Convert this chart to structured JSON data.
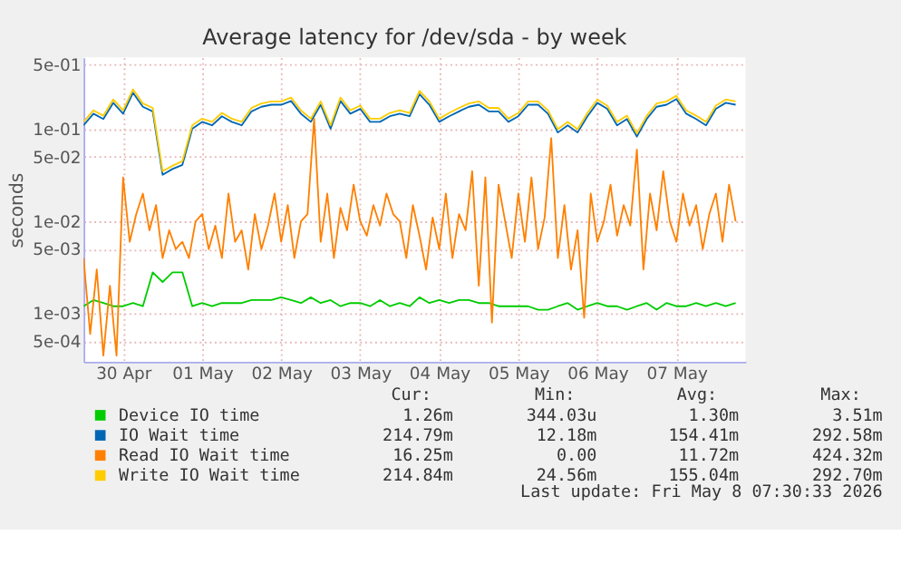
{
  "chart_data": {
    "type": "line",
    "title": "Average latency for /dev/sda - by week",
    "ylabel": "seconds",
    "log": "y",
    "grid": true,
    "legend": "bottom",
    "marker": "none",
    "line_style": "solid",
    "xlim": [
      "2026-04-30T00:00",
      "2026-05-08T09:00"
    ],
    "xticks": [
      {
        "value": "2026-04-30T12:00",
        "label": "30 Apr"
      },
      {
        "value": "2026-05-01T12:00",
        "label": "01 May"
      },
      {
        "value": "2026-05-02T12:00",
        "label": "02 May"
      },
      {
        "value": "2026-05-03T12:00",
        "label": "03 May"
      },
      {
        "value": "2026-05-04T12:00",
        "label": "04 May"
      },
      {
        "value": "2026-05-05T12:00",
        "label": "05 May"
      },
      {
        "value": "2026-05-06T12:00",
        "label": "06 May"
      },
      {
        "value": "2026-05-07T12:00",
        "label": "07 May"
      }
    ],
    "ylim": [
      0.0003,
      0.6
    ],
    "yticks": [
      {
        "value": 0.0005,
        "label": "5e-04"
      },
      {
        "value": 0.001,
        "label": "1e-03"
      },
      {
        "value": 0.005,
        "label": "5e-03"
      },
      {
        "value": 0.01,
        "label": "1e-02"
      },
      {
        "value": 0.05,
        "label": "5e-02"
      },
      {
        "value": 0.1,
        "label": "1e-01"
      },
      {
        "value": 0.5,
        "label": "5e-01"
      }
    ],
    "x": [
      "2026-04-30T00:00",
      "2026-04-30T03:00",
      "2026-04-30T06:00",
      "2026-04-30T09:00",
      "2026-04-30T12:00",
      "2026-04-30T15:00",
      "2026-04-30T18:00",
      "2026-04-30T21:00",
      "2026-05-01T00:00",
      "2026-05-01T03:00",
      "2026-05-01T06:00",
      "2026-05-01T09:00",
      "2026-05-01T12:00",
      "2026-05-01T15:00",
      "2026-05-01T18:00",
      "2026-05-01T21:00",
      "2026-05-02T00:00",
      "2026-05-02T03:00",
      "2026-05-02T06:00",
      "2026-05-02T09:00",
      "2026-05-02T12:00",
      "2026-05-02T15:00",
      "2026-05-02T18:00",
      "2026-05-02T21:00",
      "2026-05-03T00:00",
      "2026-05-03T03:00",
      "2026-05-03T06:00",
      "2026-05-03T09:00",
      "2026-05-03T12:00",
      "2026-05-03T15:00",
      "2026-05-03T18:00",
      "2026-05-03T21:00",
      "2026-05-04T00:00",
      "2026-05-04T03:00",
      "2026-05-04T06:00",
      "2026-05-04T09:00",
      "2026-05-04T12:00",
      "2026-05-04T15:00",
      "2026-05-04T18:00",
      "2026-05-04T21:00",
      "2026-05-05T00:00",
      "2026-05-05T03:00",
      "2026-05-05T06:00",
      "2026-05-05T09:00",
      "2026-05-05T12:00",
      "2026-05-05T15:00",
      "2026-05-05T18:00",
      "2026-05-05T21:00",
      "2026-05-06T00:00",
      "2026-05-06T03:00",
      "2026-05-06T06:00",
      "2026-05-06T09:00",
      "2026-05-06T12:00",
      "2026-05-06T15:00",
      "2026-05-06T18:00",
      "2026-05-06T21:00",
      "2026-05-07T00:00",
      "2026-05-07T03:00",
      "2026-05-07T06:00",
      "2026-05-07T09:00",
      "2026-05-07T12:00",
      "2026-05-07T15:00",
      "2026-05-07T18:00",
      "2026-05-07T21:00",
      "2026-05-08T00:00",
      "2026-05-08T03:00",
      "2026-05-08T06:00"
    ],
    "series": [
      {
        "name": "Device IO time",
        "color": "#00cc00",
        "values": [
          0.0012,
          0.0014,
          0.0013,
          0.0012,
          0.0012,
          0.0013,
          0.0012,
          0.0028,
          0.0022,
          0.0028,
          0.0028,
          0.0012,
          0.0013,
          0.0012,
          0.0013,
          0.0013,
          0.0013,
          0.0014,
          0.0014,
          0.0014,
          0.0015,
          0.0014,
          0.0013,
          0.0015,
          0.0013,
          0.0014,
          0.0012,
          0.0013,
          0.0013,
          0.0012,
          0.0014,
          0.0012,
          0.0013,
          0.0012,
          0.0015,
          0.0013,
          0.0014,
          0.0013,
          0.0014,
          0.0014,
          0.0013,
          0.0013,
          0.0012,
          0.0012,
          0.0012,
          0.0012,
          0.0011,
          0.0011,
          0.0012,
          0.0013,
          0.0011,
          0.0012,
          0.0013,
          0.0012,
          0.0012,
          0.0011,
          0.0012,
          0.0013,
          0.0011,
          0.0013,
          0.0012,
          0.0012,
          0.0013,
          0.0012,
          0.0013,
          0.0012,
          0.0013
        ]
      },
      {
        "name": "IO Wait time",
        "color": "#0066b3",
        "values": [
          0.11,
          0.147,
          0.129,
          0.193,
          0.147,
          0.248,
          0.175,
          0.156,
          0.032,
          0.037,
          0.041,
          0.101,
          0.12,
          0.11,
          0.138,
          0.12,
          0.11,
          0.156,
          0.175,
          0.184,
          0.184,
          0.202,
          0.147,
          0.12,
          0.184,
          0.101,
          0.202,
          0.147,
          0.166,
          0.12,
          0.12,
          0.138,
          0.147,
          0.138,
          0.239,
          0.184,
          0.12,
          0.138,
          0.156,
          0.175,
          0.184,
          0.156,
          0.156,
          0.12,
          0.138,
          0.184,
          0.184,
          0.147,
          0.092,
          0.11,
          0.092,
          0.138,
          0.193,
          0.166,
          0.11,
          0.129,
          0.083,
          0.129,
          0.175,
          0.184,
          0.212,
          0.147,
          0.129,
          0.11,
          0.166,
          0.193,
          0.184
        ]
      },
      {
        "name": "Read IO Wait time",
        "color": "#ff8000",
        "x": [
          "2026-04-30T00:00",
          "2026-04-30T02:00",
          "2026-04-30T04:00",
          "2026-04-30T06:00",
          "2026-04-30T08:00",
          "2026-04-30T10:00",
          "2026-04-30T12:00",
          "2026-04-30T14:00",
          "2026-04-30T16:00",
          "2026-04-30T18:00",
          "2026-04-30T20:00",
          "2026-04-30T22:00",
          "2026-05-01T00:00",
          "2026-05-01T02:00",
          "2026-05-01T04:00",
          "2026-05-01T06:00",
          "2026-05-01T08:00",
          "2026-05-01T10:00",
          "2026-05-01T12:00",
          "2026-05-01T14:00",
          "2026-05-01T16:00",
          "2026-05-01T18:00",
          "2026-05-01T20:00",
          "2026-05-01T22:00",
          "2026-05-02T00:00",
          "2026-05-02T02:00",
          "2026-05-02T04:00",
          "2026-05-02T06:00",
          "2026-05-02T08:00",
          "2026-05-02T10:00",
          "2026-05-02T12:00",
          "2026-05-02T14:00",
          "2026-05-02T16:00",
          "2026-05-02T18:00",
          "2026-05-02T20:00",
          "2026-05-02T22:00",
          "2026-05-03T00:00",
          "2026-05-03T02:00",
          "2026-05-03T04:00",
          "2026-05-03T06:00",
          "2026-05-03T08:00",
          "2026-05-03T10:00",
          "2026-05-03T12:00",
          "2026-05-03T14:00",
          "2026-05-03T16:00",
          "2026-05-03T18:00",
          "2026-05-03T20:00",
          "2026-05-03T22:00",
          "2026-05-04T00:00",
          "2026-05-04T02:00",
          "2026-05-04T04:00",
          "2026-05-04T06:00",
          "2026-05-04T08:00",
          "2026-05-04T10:00",
          "2026-05-04T12:00",
          "2026-05-04T14:00",
          "2026-05-04T16:00",
          "2026-05-04T18:00",
          "2026-05-04T20:00",
          "2026-05-04T22:00",
          "2026-05-05T00:00",
          "2026-05-05T02:00",
          "2026-05-05T04:00",
          "2026-05-05T06:00",
          "2026-05-05T08:00",
          "2026-05-05T10:00",
          "2026-05-05T12:00",
          "2026-05-05T14:00",
          "2026-05-05T16:00",
          "2026-05-05T18:00",
          "2026-05-05T20:00",
          "2026-05-05T22:00",
          "2026-05-06T00:00",
          "2026-05-06T02:00",
          "2026-05-06T04:00",
          "2026-05-06T06:00",
          "2026-05-06T08:00",
          "2026-05-06T10:00",
          "2026-05-06T12:00",
          "2026-05-06T14:00",
          "2026-05-06T16:00",
          "2026-05-06T18:00",
          "2026-05-06T20:00",
          "2026-05-06T22:00",
          "2026-05-07T00:00",
          "2026-05-07T02:00",
          "2026-05-07T04:00",
          "2026-05-07T06:00",
          "2026-05-07T08:00",
          "2026-05-07T10:00",
          "2026-05-07T12:00",
          "2026-05-07T14:00",
          "2026-05-07T16:00",
          "2026-05-07T18:00",
          "2026-05-07T20:00",
          "2026-05-07T22:00",
          "2026-05-08T00:00",
          "2026-05-08T02:00",
          "2026-05-08T04:00",
          "2026-05-08T06:00"
        ],
        "values": [
          0.004,
          0.0006,
          0.003,
          0.00035,
          0.002,
          0.00035,
          0.03,
          0.006,
          0.012,
          0.02,
          0.008,
          0.015,
          0.004,
          0.008,
          0.005,
          0.006,
          0.004,
          0.01,
          0.012,
          0.005,
          0.009,
          0.004,
          0.02,
          0.006,
          0.008,
          0.003,
          0.012,
          0.005,
          0.009,
          0.02,
          0.006,
          0.015,
          0.004,
          0.01,
          0.012,
          0.13,
          0.006,
          0.02,
          0.004,
          0.014,
          0.008,
          0.025,
          0.01,
          0.007,
          0.015,
          0.009,
          0.02,
          0.012,
          0.01,
          0.004,
          0.015,
          0.007,
          0.003,
          0.011,
          0.005,
          0.02,
          0.004,
          0.012,
          0.008,
          0.035,
          0.002,
          0.03,
          0.0008,
          0.025,
          0.01,
          0.004,
          0.02,
          0.006,
          0.03,
          0.005,
          0.011,
          0.08,
          0.004,
          0.015,
          0.003,
          0.008,
          0.0009,
          0.02,
          0.006,
          0.01,
          0.025,
          0.007,
          0.015,
          0.009,
          0.06,
          0.003,
          0.02,
          0.008,
          0.035,
          0.01,
          0.006,
          0.02,
          0.009,
          0.015,
          0.005,
          0.012,
          0.02,
          0.006,
          0.025,
          0.01
        ]
      },
      {
        "name": "Write IO Wait time",
        "color": "#ffcc00",
        "values": [
          0.12,
          0.16,
          0.14,
          0.21,
          0.16,
          0.27,
          0.19,
          0.17,
          0.035,
          0.04,
          0.045,
          0.11,
          0.13,
          0.12,
          0.15,
          0.13,
          0.12,
          0.17,
          0.19,
          0.2,
          0.2,
          0.22,
          0.16,
          0.13,
          0.2,
          0.11,
          0.22,
          0.16,
          0.18,
          0.13,
          0.13,
          0.15,
          0.16,
          0.15,
          0.26,
          0.2,
          0.13,
          0.15,
          0.17,
          0.19,
          0.2,
          0.17,
          0.17,
          0.13,
          0.15,
          0.2,
          0.2,
          0.16,
          0.1,
          0.12,
          0.1,
          0.15,
          0.21,
          0.18,
          0.12,
          0.14,
          0.09,
          0.14,
          0.19,
          0.2,
          0.23,
          0.16,
          0.14,
          0.12,
          0.18,
          0.21,
          0.2
        ]
      }
    ],
    "annotations": [
      "Cur:",
      "Min:",
      "Avg:",
      "Max:",
      "1.26m",
      "344.03u",
      "1.30m",
      "3.51m",
      "214.79m",
      "12.18m",
      "154.41m",
      "292.58m",
      "16.25m",
      "0.00",
      "11.72m",
      "424.32m",
      "214.84m",
      "24.56m",
      "155.04m",
      "292.70m",
      "Last update: Fri May  8 07:30:33 2026"
    ]
  }
}
